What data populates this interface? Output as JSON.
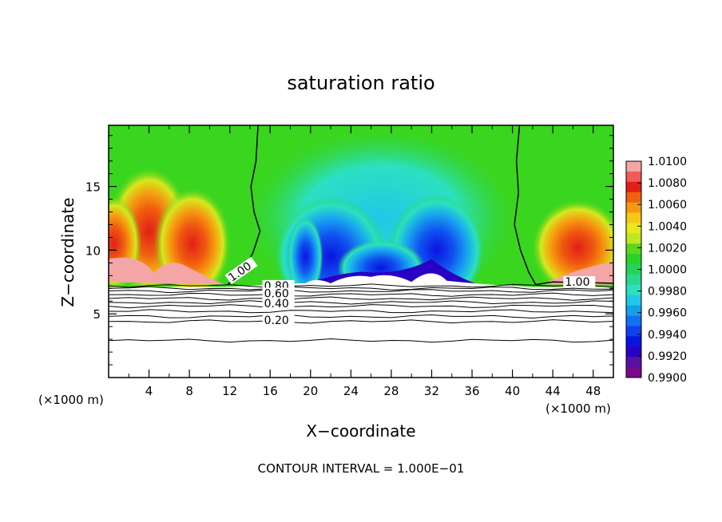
{
  "chart_data": {
    "type": "heatmap",
    "title": "saturation ratio",
    "xlabel": "X−coordinate",
    "ylabel": "Z−coordinate",
    "x_unit_left": "(×1000 m)",
    "x_unit_right": "(×1000 m)",
    "footer": "CONTOUR INTERVAL = 1.000E−01",
    "xlim": [
      0,
      50
    ],
    "ylim": [
      0,
      19.8
    ],
    "x_ticks": [
      4,
      8,
      12,
      16,
      20,
      24,
      28,
      32,
      36,
      40,
      44,
      48
    ],
    "y_ticks": [
      5,
      10,
      15
    ],
    "colorbar": {
      "ticks": [
        "1.0100",
        "1.0080",
        "1.0060",
        "1.0040",
        "1.0020",
        "1.0000",
        "0.9980",
        "0.9960",
        "0.9940",
        "0.9920",
        "0.9900"
      ],
      "colors": [
        "#f4a6a6",
        "#f05a5a",
        "#e02018",
        "#f06010",
        "#f59a10",
        "#f5c814",
        "#e8e81e",
        "#c0e81e",
        "#5ed51e",
        "#2ad22a",
        "#28d258",
        "#2ad88e",
        "#2ce0c2",
        "#20c8e6",
        "#14a0ee",
        "#1470f0",
        "#1040f0",
        "#0a14e0",
        "#2a00c4",
        "#5a10a0",
        "#7a0a8c"
      ]
    },
    "contour_labels": [
      "1.00",
      "1.00",
      "0.80",
      "0.60",
      "0.40",
      "0.20"
    ],
    "contour_levels_below_cloud": [
      0.2,
      0.4,
      0.6,
      0.8
    ],
    "cloud_base_z": 7.1,
    "notes_values": {
      "supersaturation_max": 1.01,
      "subsaturation_min": 0.99
    }
  }
}
